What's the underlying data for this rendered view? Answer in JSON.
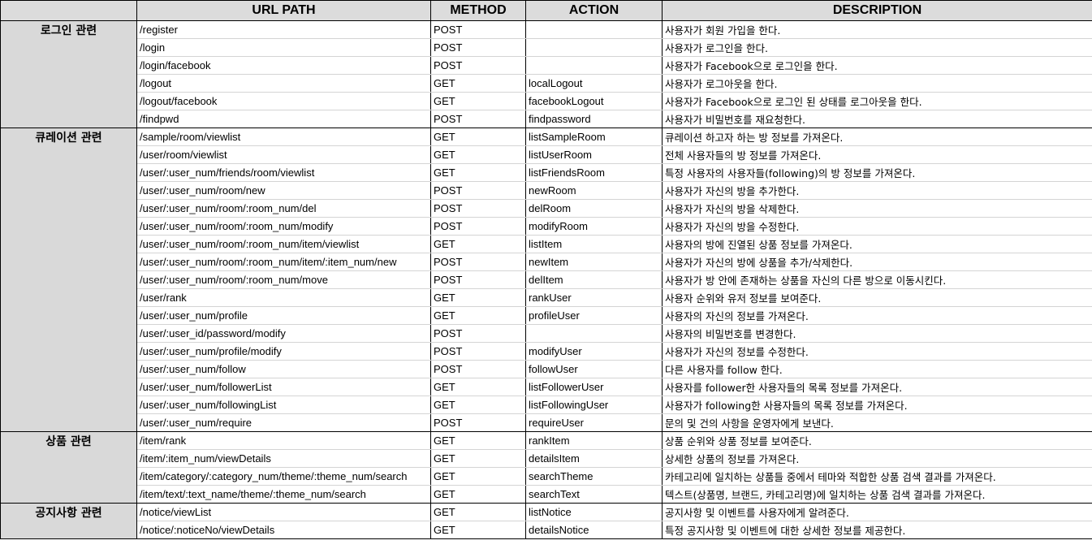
{
  "headers": {
    "category": "",
    "url": "URL PATH",
    "method": "METHOD",
    "action": "ACTION",
    "description": "DESCRIPTION"
  },
  "groups": [
    {
      "category": "로그인 관련",
      "rows": [
        {
          "url": "/register",
          "method": "POST",
          "action": "",
          "description": "사용자가 회원 가입을 한다."
        },
        {
          "url": "/login",
          "method": "POST",
          "action": "",
          "description": "사용자가 로그인을 한다."
        },
        {
          "url": "/login/facebook",
          "method": "POST",
          "action": "",
          "description": "사용자가 Facebook으로 로그인을 한다."
        },
        {
          "url": "/logout",
          "method": "GET",
          "action": "localLogout",
          "description": "사용자가 로그아웃을 한다."
        },
        {
          "url": "/logout/facebook",
          "method": "GET",
          "action": "facebookLogout",
          "description": "사용자가 Facebook으로 로그인 된 상태를 로그아웃을 한다."
        },
        {
          "url": "/findpwd",
          "method": "POST",
          "action": "findpassword",
          "description": "사용자가 비밀번호를 재요청한다."
        }
      ]
    },
    {
      "category": "큐레이션 관련",
      "rows": [
        {
          "url": "/sample/room/viewlist",
          "method": "GET",
          "action": "listSampleRoom",
          "description": "큐레이션 하고자 하는 방 정보를 가져온다."
        },
        {
          "url": "/user/room/viewlist",
          "method": "GET",
          "action": "listUserRoom",
          "description": "전체 사용자들의 방 정보를 가져온다."
        },
        {
          "url": "/user/:user_num/friends/room/viewlist",
          "method": "GET",
          "action": "listFriendsRoom",
          "description": "특정 사용자의 사용자들(following)의 방 정보를 가져온다."
        },
        {
          "url": "/user/:user_num/room/new",
          "method": "POST",
          "action": "newRoom",
          "description": "사용자가 자신의 방을 추가한다."
        },
        {
          "url": "/user/:user_num/room/:room_num/del",
          "method": "POST",
          "action": "delRoom",
          "description": "사용자가 자신의 방을 삭제한다."
        },
        {
          "url": "/user/:user_num/room/:room_num/modify",
          "method": "POST",
          "action": "modifyRoom",
          "description": "사용자가 자신의 방을 수정한다."
        },
        {
          "url": "/user/:user_num/room/:room_num/item/viewlist",
          "method": "GET",
          "action": "listItem",
          "description": "사용자의 방에 진열된 상품 정보를 가져온다."
        },
        {
          "url": "/user/:user_num/room/:room_num/item/:item_num/new",
          "method": "POST",
          "action": "newItem",
          "description": "사용자가 자신의 방에 상품을 추가/삭제한다."
        },
        {
          "url": "/user/:user_num/room/:room_num/move",
          "method": "POST",
          "action": "delItem",
          "description": "사용자가 방 안에 존재하는 상품을 자신의 다른 방으로 이동시킨다."
        },
        {
          "url": "/user/rank",
          "method": "GET",
          "action": "rankUser",
          "description": "사용자 순위와 유저 정보를 보여준다."
        },
        {
          "url": "/user/:user_num/profile",
          "method": "GET",
          "action": "profileUser",
          "description": "사용자의 자신의 정보를 가져온다."
        },
        {
          "url": "/user/:user_id/password/modify",
          "method": "POST",
          "action": "",
          "description": "사용자의 비밀번호를 변경한다."
        },
        {
          "url": "/user/:user_num/profile/modify",
          "method": "POST",
          "action": "modifyUser",
          "description": "사용자가 자신의 정보를 수정한다."
        },
        {
          "url": "/user/:user_num/follow",
          "method": "POST",
          "action": "followUser",
          "description": "다른 사용자를 follow 한다."
        },
        {
          "url": "/user/:user_num/followerList",
          "method": "GET",
          "action": "listFollowerUser",
          "description": "사용자를 follower한 사용자들의 목록 정보를 가져온다."
        },
        {
          "url": "/user/:user_num/followingList",
          "method": "GET",
          "action": "listFollowingUser",
          "description": "사용자가 following한 사용자들의 목록 정보를 가져온다."
        },
        {
          "url": "/user/:user_num/require",
          "method": "POST",
          "action": "requireUser",
          "description": "문의 및 건의 사항을 운영자에게 보낸다."
        }
      ]
    },
    {
      "category": "상품 관련",
      "rows": [
        {
          "url": "/item/rank",
          "method": "GET",
          "action": "rankItem",
          "description": "상품 순위와 상품 정보를 보여준다."
        },
        {
          "url": "/item/:item_num/viewDetails",
          "method": "GET",
          "action": "detailsItem",
          "description": "상세한 상품의 정보를 가져온다."
        },
        {
          "url": "/item/category/:category_num/theme/:theme_num/search",
          "method": "GET",
          "action": "searchTheme",
          "description": "카테고리에 일치하는 상품들 중에서 테마와 적합한 상품 검색 결과를 가져온다."
        },
        {
          "url": "/item/text/:text_name/theme/:theme_num/search",
          "method": "GET",
          "action": "searchText",
          "description": "텍스트(상품명, 브랜드, 카테고리명)에 일치하는 상품 검색 결과를 가져온다."
        }
      ]
    },
    {
      "category": "공지사항 관련",
      "rows": [
        {
          "url": "/notice/viewList",
          "method": "GET",
          "action": "listNotice",
          "description": "공지사항 및 이벤트를 사용자에게 알려준다."
        },
        {
          "url": "/notice/:noticeNo/viewDetails",
          "method": "GET",
          "action": "detailsNotice",
          "description": "특정 공지사항 및 이벤트에 대한 상세한 정보를 제공한다."
        }
      ]
    }
  ]
}
